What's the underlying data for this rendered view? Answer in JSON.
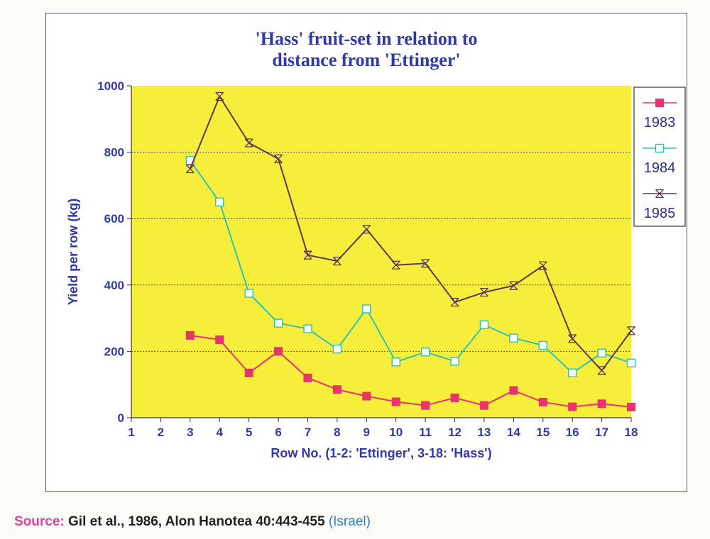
{
  "chart_data": {
    "type": "line",
    "title": [
      "'Hass' fruit-set in relation to",
      "distance from 'Ettinger'"
    ],
    "xlabel": "Row No. (1-2: 'Ettinger', 3-18: 'Hass')",
    "ylabel": "Yield per row (kg)",
    "xticks": [
      1,
      2,
      3,
      4,
      5,
      6,
      7,
      8,
      9,
      10,
      11,
      12,
      13,
      14,
      15,
      16,
      17,
      18
    ],
    "yticks": [
      0,
      200,
      400,
      600,
      800,
      1000
    ],
    "xlim": [
      1,
      18
    ],
    "ylim": [
      0,
      1000
    ],
    "grid": "horizontal dotted",
    "legend_position": "right",
    "plot_background": "#f7ee3c",
    "series": [
      {
        "name": "1983",
        "color": "#e8336d",
        "marker": "filled-square",
        "x": [
          3,
          4,
          5,
          6,
          7,
          8,
          9,
          10,
          11,
          12,
          13,
          14,
          15,
          16,
          17,
          18
        ],
        "y": [
          248,
          235,
          135,
          200,
          120,
          85,
          65,
          48,
          37,
          60,
          37,
          82,
          47,
          33,
          42,
          32
        ]
      },
      {
        "name": "1984",
        "color": "#2ec4b6",
        "marker": "open-square",
        "x": [
          3,
          4,
          5,
          6,
          7,
          8,
          9,
          10,
          11,
          12,
          13,
          14,
          15,
          16,
          17,
          18
        ],
        "y": [
          775,
          650,
          375,
          285,
          268,
          207,
          328,
          168,
          198,
          170,
          280,
          240,
          218,
          135,
          195,
          165
        ]
      },
      {
        "name": "1985",
        "color": "#5a3a52",
        "marker": "x-cross",
        "x": [
          3,
          4,
          5,
          6,
          7,
          8,
          9,
          10,
          11,
          12,
          13,
          14,
          15,
          16,
          17,
          18
        ],
        "y": [
          750,
          968,
          828,
          780,
          490,
          472,
          568,
          460,
          465,
          348,
          378,
          398,
          458,
          238,
          142,
          262
        ]
      }
    ]
  },
  "source": {
    "label": "Source:",
    "text": "Gil et al., 1986, Alon Hanotea 40:443-455",
    "country": "(Israel)"
  }
}
